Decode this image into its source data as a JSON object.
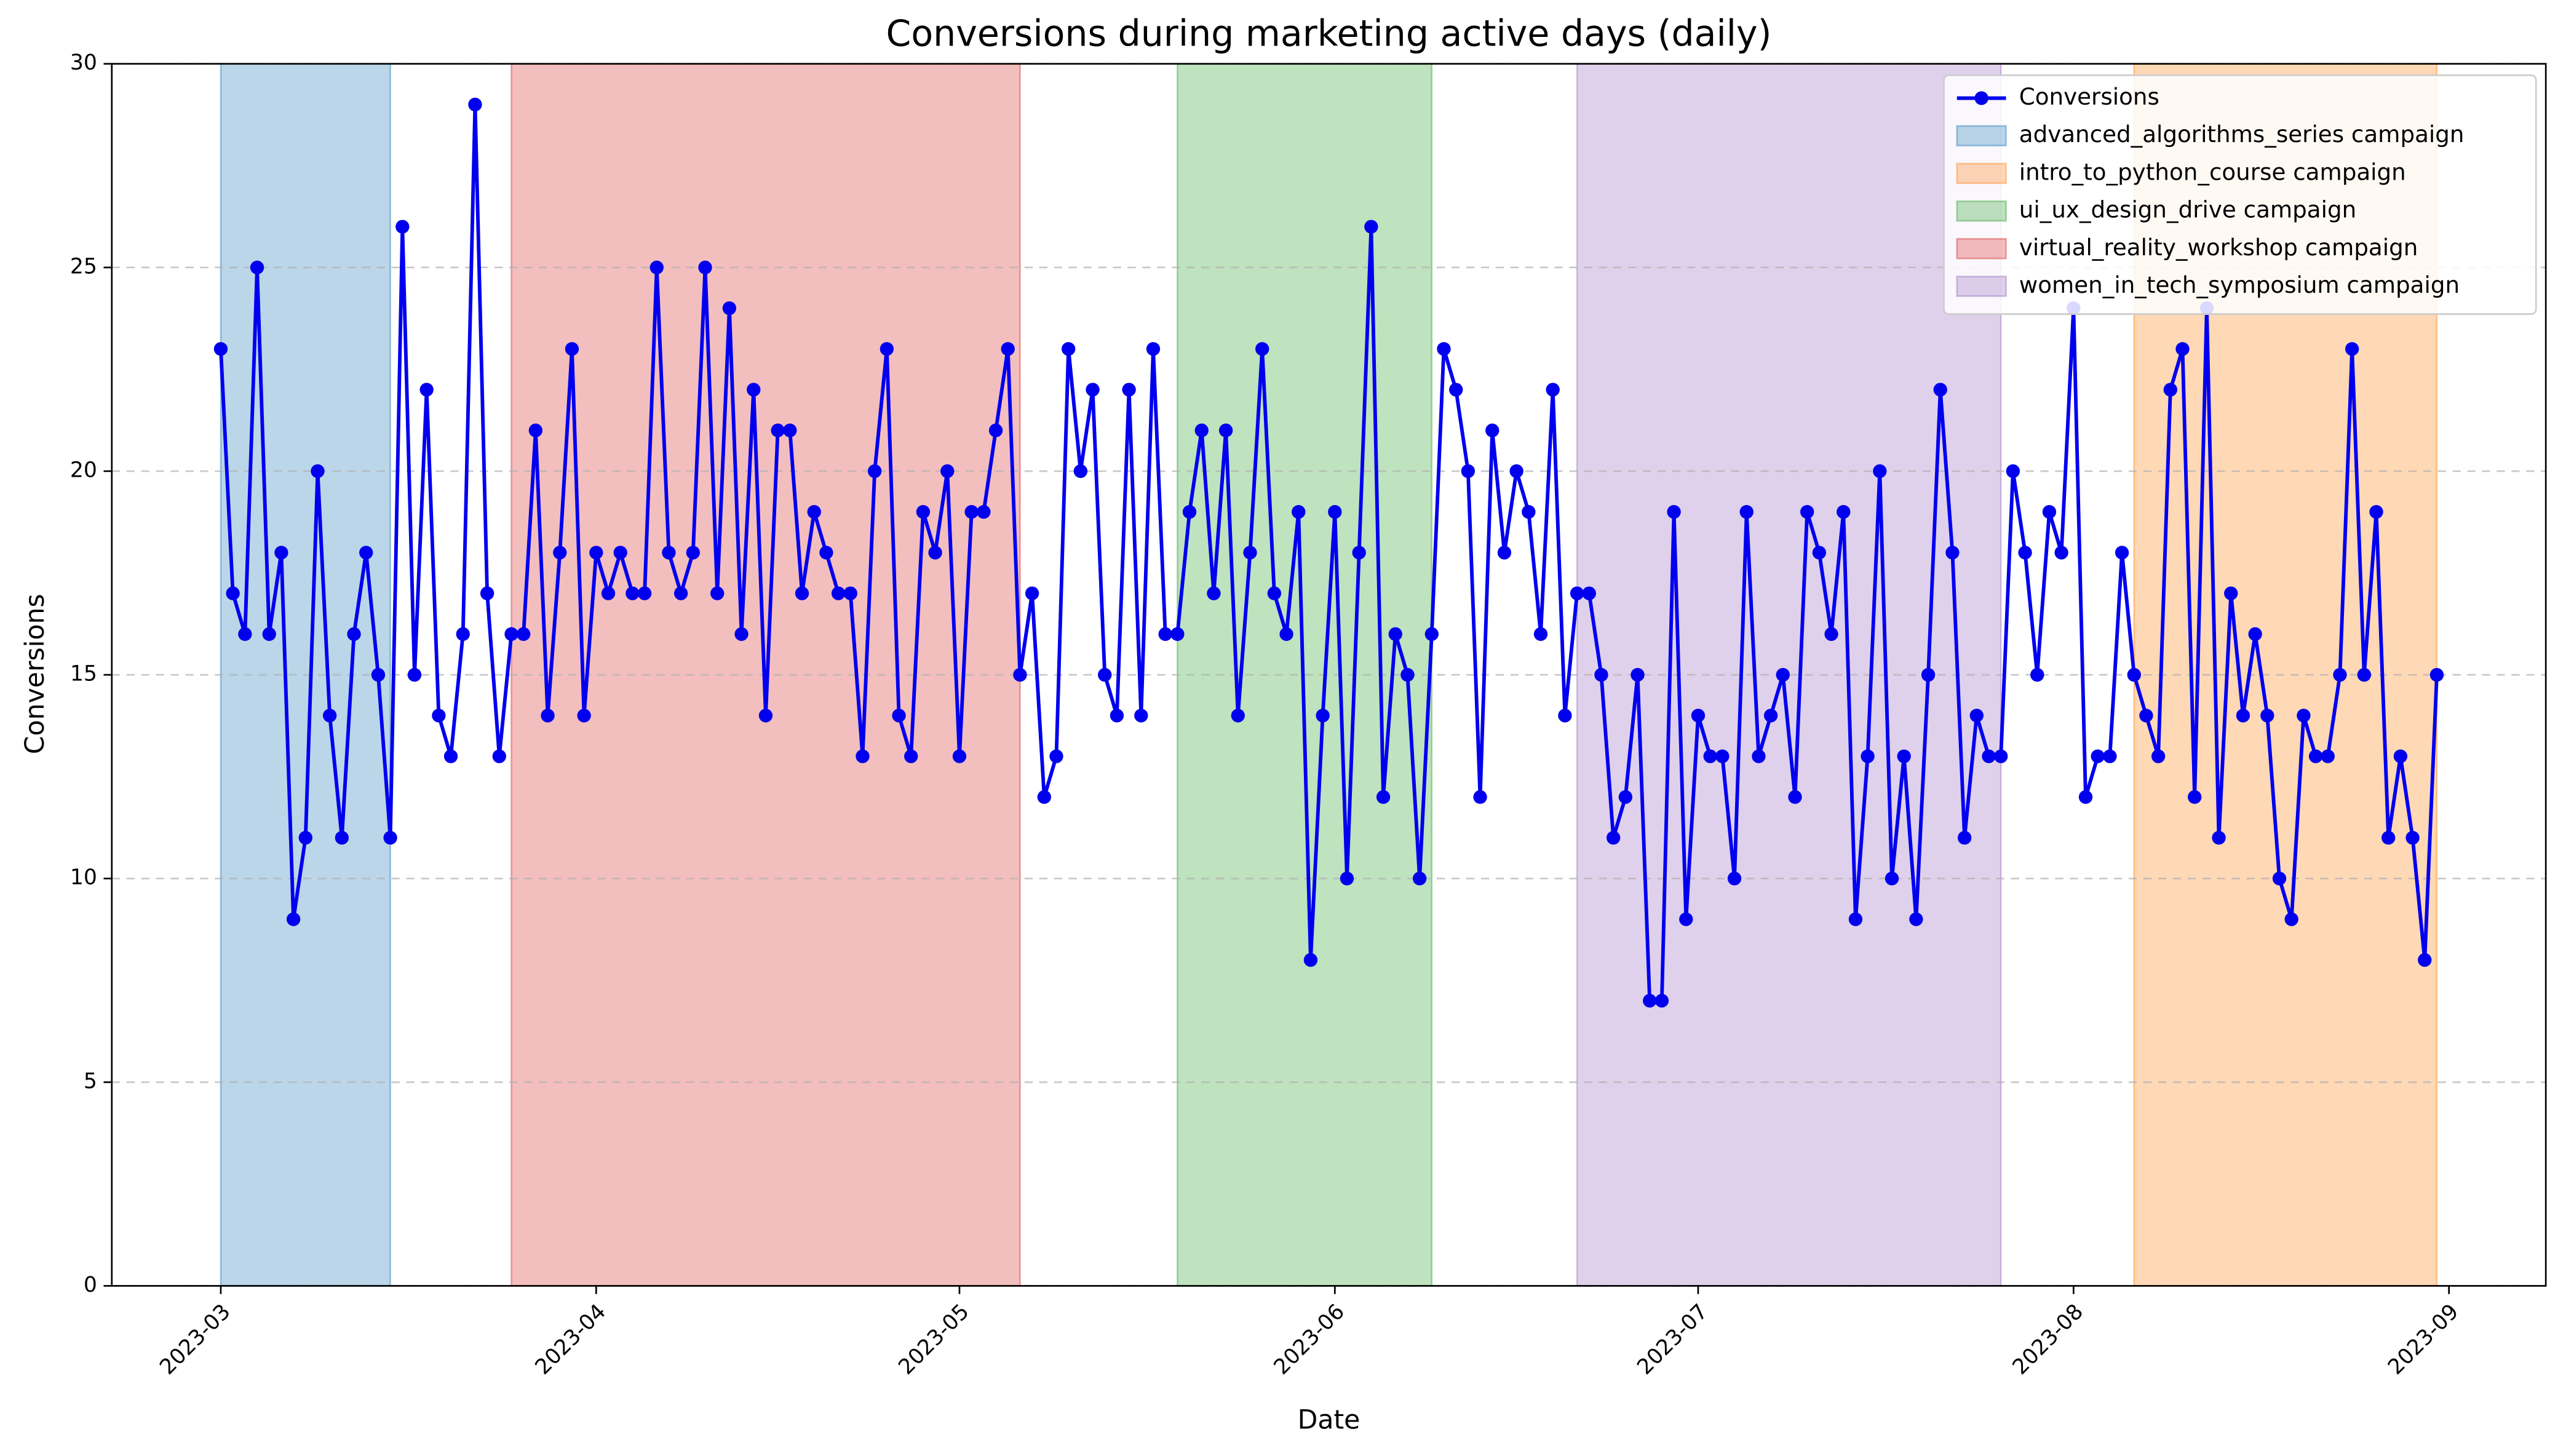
{
  "chart_data": {
    "type": "line",
    "title": "Conversions during marketing active days (daily)",
    "x_label": "Date",
    "y_label": "Conversions",
    "x": [
      "2023-03-01",
      "2023-03-02",
      "2023-03-03",
      "2023-03-04",
      "2023-03-05",
      "2023-03-06",
      "2023-03-07",
      "2023-03-08",
      "2023-03-09",
      "2023-03-10",
      "2023-03-11",
      "2023-03-12",
      "2023-03-13",
      "2023-03-14",
      "2023-03-15",
      "2023-03-16",
      "2023-03-17",
      "2023-03-18",
      "2023-03-19",
      "2023-03-20",
      "2023-03-21",
      "2023-03-22",
      "2023-03-23",
      "2023-03-24",
      "2023-03-25",
      "2023-03-26",
      "2023-03-27",
      "2023-03-28",
      "2023-03-29",
      "2023-03-30",
      "2023-03-31",
      "2023-04-01",
      "2023-04-02",
      "2023-04-03",
      "2023-04-04",
      "2023-04-05",
      "2023-04-06",
      "2023-04-07",
      "2023-04-08",
      "2023-04-09",
      "2023-04-10",
      "2023-04-11",
      "2023-04-12",
      "2023-04-13",
      "2023-04-14",
      "2023-04-15",
      "2023-04-16",
      "2023-04-17",
      "2023-04-18",
      "2023-04-19",
      "2023-04-20",
      "2023-04-21",
      "2023-04-22",
      "2023-04-23",
      "2023-04-24",
      "2023-04-25",
      "2023-04-26",
      "2023-04-27",
      "2023-04-28",
      "2023-04-29",
      "2023-04-30",
      "2023-05-01",
      "2023-05-02",
      "2023-05-03",
      "2023-05-04",
      "2023-05-05",
      "2023-05-06",
      "2023-05-07",
      "2023-05-08",
      "2023-05-09",
      "2023-05-10",
      "2023-05-11",
      "2023-05-12",
      "2023-05-13",
      "2023-05-14",
      "2023-05-15",
      "2023-05-16",
      "2023-05-17",
      "2023-05-18",
      "2023-05-19",
      "2023-05-20",
      "2023-05-21",
      "2023-05-22",
      "2023-05-23",
      "2023-05-24",
      "2023-05-25",
      "2023-05-26",
      "2023-05-27",
      "2023-05-28",
      "2023-05-29",
      "2023-05-30",
      "2023-05-31",
      "2023-06-01",
      "2023-06-02",
      "2023-06-03",
      "2023-06-04",
      "2023-06-05",
      "2023-06-06",
      "2023-06-07",
      "2023-06-08",
      "2023-06-09",
      "2023-06-10",
      "2023-06-11",
      "2023-06-12",
      "2023-06-13",
      "2023-06-14",
      "2023-06-15",
      "2023-06-16",
      "2023-06-17",
      "2023-06-18",
      "2023-06-19",
      "2023-06-20",
      "2023-06-21",
      "2023-06-22",
      "2023-06-23",
      "2023-06-24",
      "2023-06-25",
      "2023-06-26",
      "2023-06-27",
      "2023-06-28",
      "2023-06-29",
      "2023-06-30",
      "2023-07-01",
      "2023-07-02",
      "2023-07-03",
      "2023-07-04",
      "2023-07-05",
      "2023-07-06",
      "2023-07-07",
      "2023-07-08",
      "2023-07-09",
      "2023-07-10",
      "2023-07-11",
      "2023-07-12",
      "2023-07-13",
      "2023-07-14",
      "2023-07-15",
      "2023-07-16",
      "2023-07-17",
      "2023-07-18",
      "2023-07-19",
      "2023-07-20",
      "2023-07-21",
      "2023-07-22",
      "2023-07-23",
      "2023-07-24",
      "2023-07-25",
      "2023-07-26",
      "2023-07-27",
      "2023-07-28",
      "2023-07-29",
      "2023-07-30",
      "2023-07-31",
      "2023-08-01",
      "2023-08-02",
      "2023-08-03",
      "2023-08-04",
      "2023-08-05",
      "2023-08-06",
      "2023-08-07",
      "2023-08-08",
      "2023-08-09",
      "2023-08-10",
      "2023-08-11",
      "2023-08-12",
      "2023-08-13",
      "2023-08-14",
      "2023-08-15",
      "2023-08-16",
      "2023-08-17",
      "2023-08-18",
      "2023-08-19",
      "2023-08-20",
      "2023-08-21",
      "2023-08-22",
      "2023-08-23",
      "2023-08-24",
      "2023-08-25",
      "2023-08-26",
      "2023-08-27",
      "2023-08-28",
      "2023-08-29",
      "2023-08-30",
      "2023-08-31"
    ],
    "series": [
      {
        "name": "Conversions",
        "color": "#0000ee",
        "values": [
          23,
          17,
          16,
          25,
          16,
          18,
          9,
          11,
          20,
          14,
          11,
          16,
          18,
          15,
          11,
          26,
          15,
          22,
          14,
          13,
          16,
          29,
          17,
          13,
          16,
          16,
          21,
          14,
          18,
          23,
          14,
          18,
          17,
          18,
          17,
          17,
          25,
          18,
          17,
          18,
          25,
          17,
          24,
          16,
          22,
          14,
          21,
          21,
          17,
          19,
          18,
          17,
          17,
          13,
          20,
          23,
          14,
          13,
          19,
          18,
          20,
          13,
          19,
          19,
          21,
          23,
          15,
          17,
          12,
          13,
          23,
          20,
          22,
          15,
          14,
          22,
          14,
          23,
          16,
          16,
          19,
          21,
          17,
          21,
          14,
          18,
          23,
          17,
          16,
          19,
          8,
          14,
          19,
          10,
          18,
          26,
          12,
          16,
          15,
          10,
          16,
          23,
          22,
          20,
          12,
          21,
          18,
          20,
          19,
          16,
          22,
          14,
          17,
          17,
          15,
          11,
          12,
          15,
          7,
          7,
          19,
          9,
          14,
          13,
          13,
          10,
          19,
          13,
          14,
          15,
          12,
          19,
          18,
          16,
          19,
          9,
          13,
          20,
          10,
          13,
          9,
          15,
          22,
          18,
          11,
          14,
          13,
          13,
          20,
          18,
          15,
          19,
          18,
          24,
          12,
          13,
          13,
          18,
          15,
          14,
          13,
          22,
          23,
          12,
          24,
          11,
          17,
          14,
          16,
          14,
          10,
          9,
          14,
          13,
          13,
          15,
          23,
          15,
          19,
          11,
          13,
          11,
          8,
          15
        ]
      }
    ],
    "spans": [
      {
        "name": "advanced_algorithms_series campaign",
        "color": "#1f77b4",
        "start": "2023-03-01",
        "end": "2023-03-15"
      },
      {
        "name": "intro_to_python_course campaign",
        "color": "#ff7f0e",
        "start": "2023-08-06",
        "end": "2023-08-31"
      },
      {
        "name": "ui_ux_design_drive campaign",
        "color": "#2ca02c",
        "start": "2023-05-19",
        "end": "2023-06-09"
      },
      {
        "name": "virtual_reality_workshop campaign",
        "color": "#d62728",
        "start": "2023-03-25",
        "end": "2023-05-06"
      },
      {
        "name": "women_in_tech_symposium campaign",
        "color": "#9467bd",
        "start": "2023-06-21",
        "end": "2023-07-26"
      }
    ],
    "xlim": [
      "2023-02-20",
      "2023-09-09"
    ],
    "xticks": [
      {
        "value": "2023-03-01",
        "label": "2023-03"
      },
      {
        "value": "2023-04-01",
        "label": "2023-04"
      },
      {
        "value": "2023-05-01",
        "label": "2023-05"
      },
      {
        "value": "2023-06-01",
        "label": "2023-06"
      },
      {
        "value": "2023-07-01",
        "label": "2023-07"
      },
      {
        "value": "2023-08-01",
        "label": "2023-08"
      },
      {
        "value": "2023-09-01",
        "label": "2023-09"
      }
    ],
    "ylim": [
      0,
      30
    ],
    "yticks": [
      0,
      5,
      10,
      15,
      20,
      25,
      30
    ],
    "grid": true,
    "legend": "upper right"
  }
}
